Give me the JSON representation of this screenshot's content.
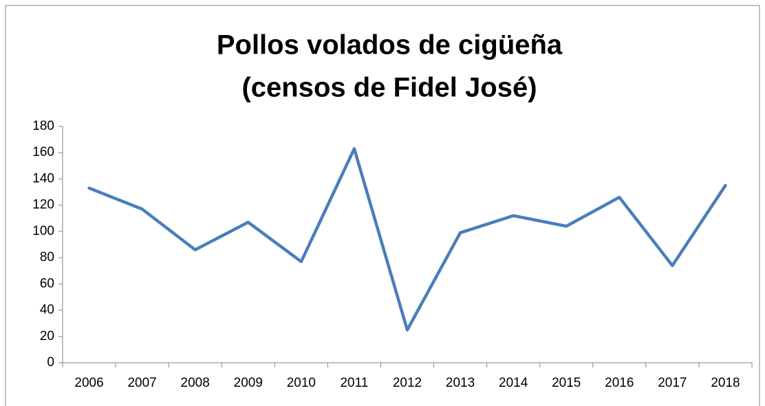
{
  "chart_data": {
    "type": "line",
    "title": "Pollos volados de cigüeña",
    "subtitle": "(censos de Fidel José)",
    "categories": [
      "2006",
      "2007",
      "2008",
      "2009",
      "2010",
      "2011",
      "2012",
      "2013",
      "2014",
      "2015",
      "2016",
      "2017",
      "2018"
    ],
    "series": [
      {
        "name": "Pollos volados",
        "color": "#4a7ebb",
        "values": [
          133,
          117,
          86,
          107,
          77,
          163,
          25,
          99,
          112,
          104,
          126,
          74,
          135
        ]
      }
    ],
    "ylim": [
      0,
      180
    ],
    "yticks": [
      0,
      20,
      40,
      60,
      80,
      100,
      120,
      140,
      160,
      180
    ],
    "grid": false
  }
}
